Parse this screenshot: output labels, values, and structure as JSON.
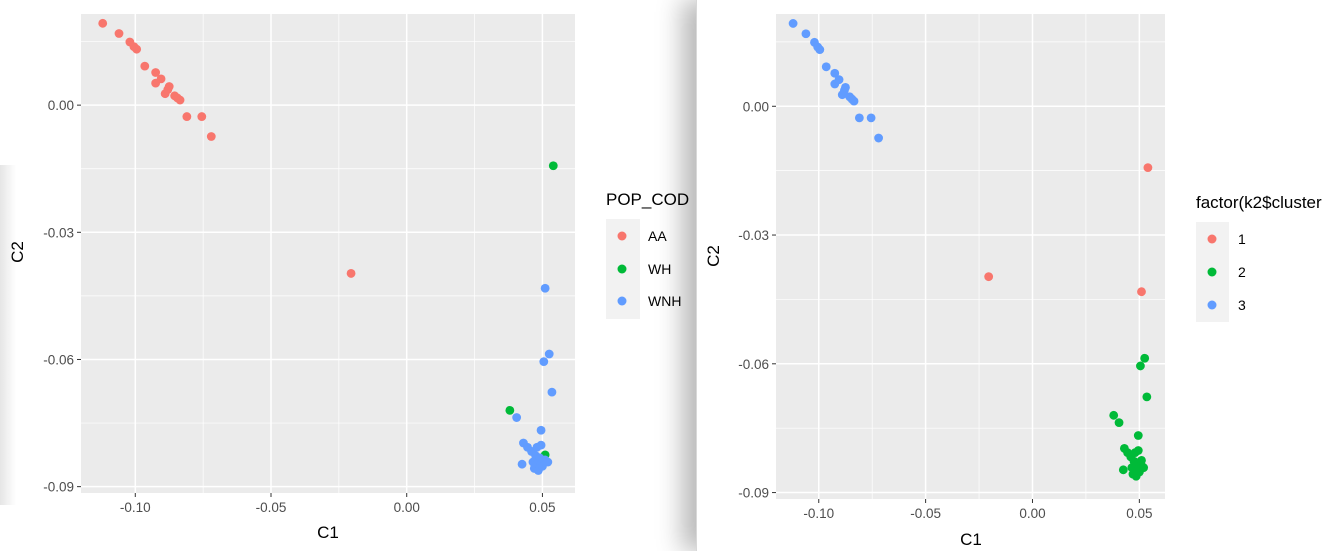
{
  "chart_data": [
    {
      "type": "scatter",
      "xlabel": "C1",
      "ylabel": "C2",
      "xlim": [
        -0.12,
        0.062
      ],
      "ylim": [
        -0.0915,
        0.0215
      ],
      "xticks": [
        -0.1,
        -0.05,
        0.0,
        0.05
      ],
      "yticks": [
        0.0,
        -0.03,
        -0.06,
        -0.09
      ],
      "xtick_labels": [
        "-0.10",
        "-0.05",
        "0.00",
        "0.05"
      ],
      "ytick_labels": [
        "0.00",
        "-0.03",
        "-0.06",
        "-0.09"
      ],
      "grid": true,
      "legend": {
        "title": "POP_COD",
        "placement": "right"
      },
      "series": [
        {
          "name": "AA",
          "color": "#F8766D",
          "points": [
            [
              -0.112,
              0.0193
            ],
            [
              -0.106,
              0.0169
            ],
            [
              -0.102,
              0.0149
            ],
            [
              -0.1005,
              0.0138
            ],
            [
              -0.0995,
              0.0132
            ],
            [
              -0.0965,
              0.0092
            ],
            [
              -0.0925,
              0.0077
            ],
            [
              -0.0925,
              0.0052
            ],
            [
              -0.0905,
              0.0062
            ],
            [
              -0.089,
              0.0027
            ],
            [
              -0.088,
              0.0037
            ],
            [
              -0.0875,
              0.0044
            ],
            [
              -0.0855,
              0.0022
            ],
            [
              -0.0845,
              0.0017
            ],
            [
              -0.0835,
              0.0012
            ],
            [
              -0.081,
              -0.0027
            ],
            [
              -0.0755,
              -0.0027
            ],
            [
              -0.072,
              -0.0074
            ],
            [
              -0.0205,
              -0.0397
            ]
          ]
        },
        {
          "name": "WH",
          "color": "#00BA38",
          "points": [
            [
              0.054,
              -0.0143
            ],
            [
              0.038,
              -0.072
            ],
            [
              0.051,
              -0.0825
            ]
          ]
        },
        {
          "name": "WNH",
          "color": "#619CFF",
          "points": [
            [
              0.051,
              -0.0432
            ],
            [
              0.0525,
              -0.0587
            ],
            [
              0.0505,
              -0.0605
            ],
            [
              0.0535,
              -0.0677
            ],
            [
              0.0405,
              -0.0737
            ],
            [
              0.0495,
              -0.0767
            ],
            [
              0.043,
              -0.0797
            ],
            [
              0.0445,
              -0.0807
            ],
            [
              0.046,
              -0.0817
            ],
            [
              0.048,
              -0.0807
            ],
            [
              0.0495,
              -0.0802
            ],
            [
              0.0475,
              -0.0827
            ],
            [
              0.049,
              -0.0832
            ],
            [
              0.051,
              -0.0837
            ],
            [
              0.0465,
              -0.0842
            ],
            [
              0.048,
              -0.0847
            ],
            [
              0.0495,
              -0.0847
            ],
            [
              0.052,
              -0.0842
            ],
            [
              0.0425,
              -0.0847
            ],
            [
              0.047,
              -0.0857
            ],
            [
              0.0485,
              -0.0862
            ],
            [
              0.05,
              -0.0852
            ]
          ]
        }
      ]
    },
    {
      "type": "scatter",
      "xlabel": "C1",
      "ylabel": "C2",
      "xlim": [
        -0.12,
        0.062
      ],
      "ylim": [
        -0.0915,
        0.0215
      ],
      "xticks": [
        -0.1,
        -0.05,
        0.0,
        0.05
      ],
      "yticks": [
        0.0,
        -0.03,
        -0.06,
        -0.09
      ],
      "xtick_labels": [
        "-0.10",
        "-0.05",
        "0.00",
        "0.05"
      ],
      "ytick_labels": [
        "0.00",
        "-0.03",
        "-0.06",
        "-0.09"
      ],
      "grid": true,
      "legend": {
        "title": "factor(k2$cluster",
        "placement": "right"
      },
      "series": [
        {
          "name": "1",
          "color": "#F8766D",
          "points": [
            [
              0.054,
              -0.0143
            ],
            [
              0.051,
              -0.0432
            ],
            [
              -0.0205,
              -0.0397
            ]
          ]
        },
        {
          "name": "2",
          "color": "#00BA38",
          "points": [
            [
              0.0525,
              -0.0587
            ],
            [
              0.0505,
              -0.0605
            ],
            [
              0.0535,
              -0.0677
            ],
            [
              0.038,
              -0.072
            ],
            [
              0.0405,
              -0.0737
            ],
            [
              0.0495,
              -0.0767
            ],
            [
              0.043,
              -0.0797
            ],
            [
              0.0445,
              -0.0807
            ],
            [
              0.046,
              -0.0817
            ],
            [
              0.048,
              -0.0807
            ],
            [
              0.0495,
              -0.0802
            ],
            [
              0.0475,
              -0.0827
            ],
            [
              0.049,
              -0.0832
            ],
            [
              0.051,
              -0.0837
            ],
            [
              0.0465,
              -0.0842
            ],
            [
              0.048,
              -0.0847
            ],
            [
              0.0495,
              -0.0847
            ],
            [
              0.052,
              -0.0842
            ],
            [
              0.0425,
              -0.0847
            ],
            [
              0.047,
              -0.0857
            ],
            [
              0.0485,
              -0.0862
            ],
            [
              0.05,
              -0.0852
            ],
            [
              0.051,
              -0.0825
            ]
          ]
        },
        {
          "name": "3",
          "color": "#619CFF",
          "points": [
            [
              -0.112,
              0.0193
            ],
            [
              -0.106,
              0.0169
            ],
            [
              -0.102,
              0.0149
            ],
            [
              -0.1005,
              0.0138
            ],
            [
              -0.0995,
              0.0132
            ],
            [
              -0.0965,
              0.0092
            ],
            [
              -0.0925,
              0.0077
            ],
            [
              -0.0925,
              0.0052
            ],
            [
              -0.0905,
              0.0062
            ],
            [
              -0.089,
              0.0027
            ],
            [
              -0.088,
              0.0037
            ],
            [
              -0.0875,
              0.0044
            ],
            [
              -0.0855,
              0.0022
            ],
            [
              -0.0845,
              0.0017
            ],
            [
              -0.0835,
              0.0012
            ],
            [
              -0.081,
              -0.0027
            ],
            [
              -0.0755,
              -0.0027
            ],
            [
              -0.072,
              -0.0074
            ]
          ]
        }
      ]
    }
  ]
}
